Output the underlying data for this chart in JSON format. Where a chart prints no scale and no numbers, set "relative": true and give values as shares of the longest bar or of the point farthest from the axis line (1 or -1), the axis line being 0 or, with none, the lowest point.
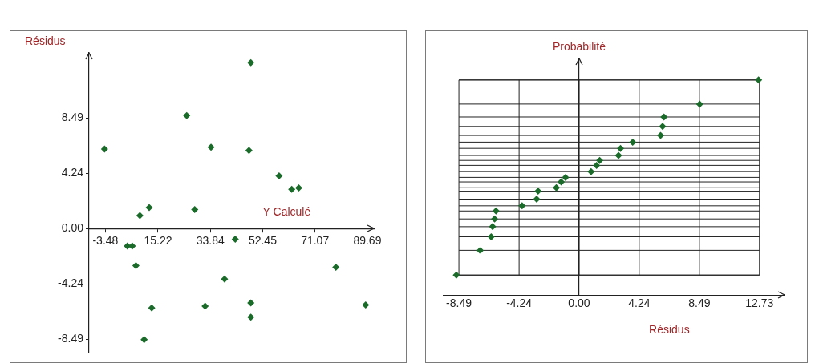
{
  "chart_data": [
    {
      "type": "scatter",
      "xlabel": "Y Calculé",
      "ylabel": "Résidus",
      "marker": "diamond",
      "color": "#1a6b2a",
      "x": [
        48.25,
        25.45,
        -3.78,
        34.1,
        47.6,
        58.3,
        62.8,
        65.3,
        8.78,
        12.1,
        28.3,
        42.7,
        4.35,
        6.07,
        7.37,
        38.9,
        78.5,
        13.0,
        31.98,
        48.25,
        48.25,
        89.1,
        10.3
      ],
      "values": [
        12.75,
        8.68,
        6.12,
        6.25,
        6.0,
        4.05,
        3.02,
        3.12,
        1.01,
        1.62,
        1.47,
        -0.82,
        -1.34,
        -1.34,
        -2.84,
        -3.88,
        -2.97,
        -6.09,
        -5.96,
        -5.71,
        -6.8,
        -5.86,
        -8.53
      ],
      "xlim": [
        -9.3,
        92
      ],
      "ylim": [
        -9.5,
        13.5
      ],
      "xticks": [
        -3.48,
        15.22,
        33.84,
        52.45,
        71.07,
        89.69
      ],
      "yticks": [
        -8.49,
        -4.24,
        {
          "value": 0,
          "label": "0.00"
        },
        4.24,
        8.49
      ]
    },
    {
      "type": "scatter",
      "xlabel": "Résidus",
      "ylabel": "Probabilité",
      "marker": "diamond",
      "color": "#1a6b2a",
      "relative": true,
      "grid": true,
      "x": [
        12.67,
        8.51,
        5.99,
        5.89,
        5.75,
        3.78,
        2.92,
        2.78,
        1.45,
        1.23,
        0.84,
        -0.96,
        -1.27,
        -1.61,
        -2.9,
        -3.0,
        -4.03,
        -5.87,
        -5.97,
        -6.11,
        -6.21,
        -6.99,
        -8.67
      ],
      "values": [
        1.0,
        0.888,
        0.828,
        0.784,
        0.742,
        0.711,
        0.682,
        0.649,
        0.626,
        0.603,
        0.574,
        0.547,
        0.526,
        0.499,
        0.483,
        0.446,
        0.415,
        0.391,
        0.354,
        0.318,
        0.271,
        0.208,
        0.093
      ],
      "xlim": [
        -9.57,
        14.5
      ],
      "xticks": [
        -8.49,
        -4.24,
        {
          "value": 0,
          "label": "0.00"
        },
        4.24,
        8.49,
        12.73
      ]
    }
  ]
}
